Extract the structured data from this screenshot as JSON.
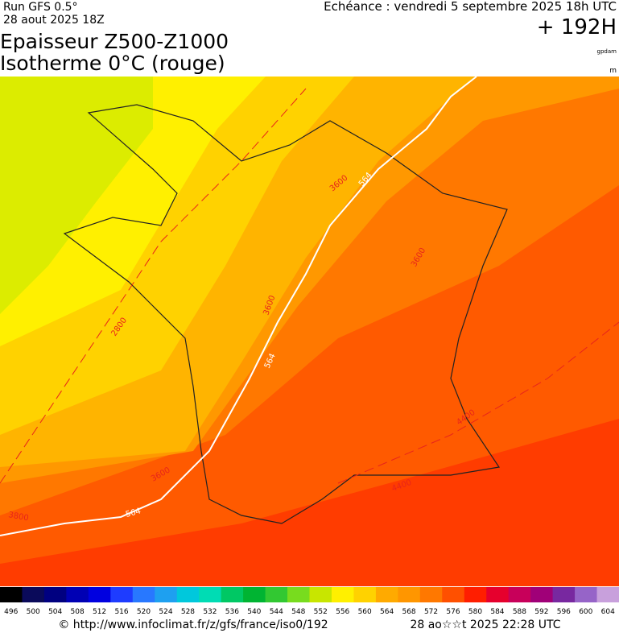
{
  "header": {
    "run": "Run GFS 0.5°",
    "date": "28 aout 2025 18Z",
    "valid": "Echéance : vendredi 5 septembre 2025 18h UTC",
    "lead": "+ 192H",
    "title_line1": "Epaisseur Z500-Z1000",
    "title_line2": "Isotherme 0°C (rouge)",
    "unit1": "gpdam",
    "unit2": "m"
  },
  "map": {
    "contour_labels": [
      "3600",
      "564",
      "3600",
      "3600",
      "2800",
      "564",
      "3600",
      "564",
      "3800",
      "4400",
      "4400"
    ]
  },
  "colorbar": {
    "ticks": [
      496,
      500,
      504,
      508,
      512,
      516,
      520,
      524,
      528,
      532,
      536,
      540,
      544,
      548,
      552,
      556,
      560,
      564,
      568,
      572,
      576,
      580,
      584,
      588,
      592,
      596,
      600,
      604
    ],
    "colors": [
      "#000000",
      "#0a0a5a",
      "#000080",
      "#0000b4",
      "#0000e0",
      "#1e3cff",
      "#2878ff",
      "#1ea0f0",
      "#00c8dc",
      "#00dcb4",
      "#00c864",
      "#00b432",
      "#32c832",
      "#78dc1e",
      "#c8e600",
      "#fff000",
      "#ffd200",
      "#ffaa00",
      "#ff9600",
      "#ff7800",
      "#ff5000",
      "#ff1e00",
      "#e6002d",
      "#c8005a",
      "#a00078",
      "#7828a0",
      "#9664c8",
      "#c8a0dc"
    ]
  },
  "footer": {
    "url": "© http://www.infoclimat.fr/z/gfs/france/iso0/192",
    "timestamp": "28 ao☆☆t 2025 22:28 UTC"
  }
}
